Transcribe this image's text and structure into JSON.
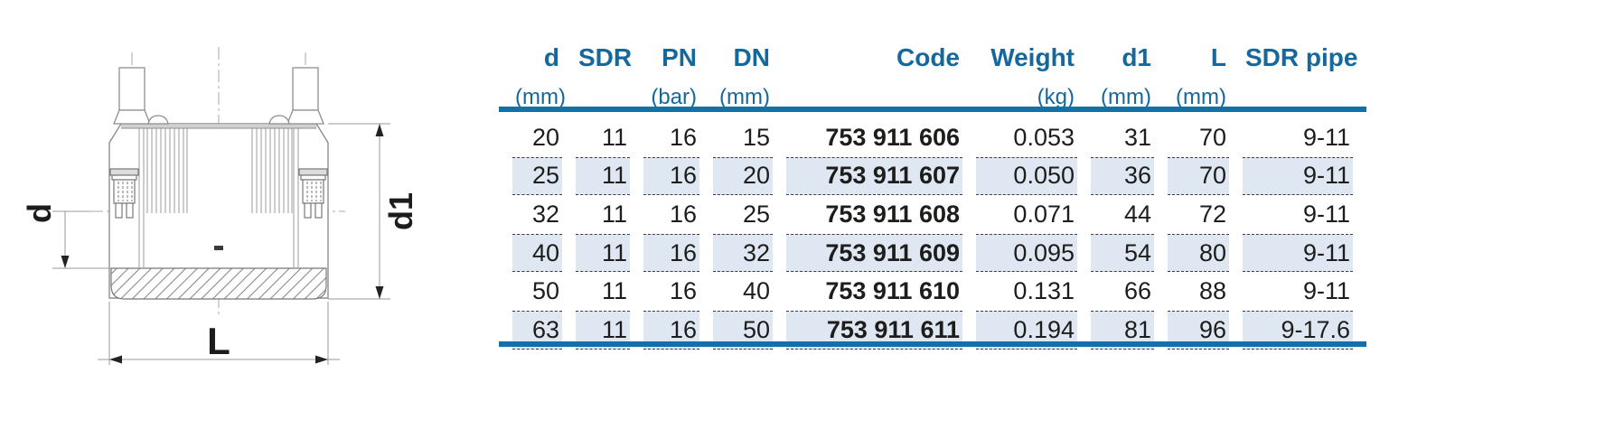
{
  "drawing": {
    "dim_d_label": "d",
    "dim_d1_label": "d1",
    "dim_L_label": "L"
  },
  "table": {
    "columns": [
      {
        "label": "d",
        "unit": "(mm)"
      },
      {
        "label": "SDR",
        "unit": ""
      },
      {
        "label": "PN",
        "unit": "(bar)"
      },
      {
        "label": "DN",
        "unit": "(mm)"
      },
      {
        "label": "Code",
        "unit": ""
      },
      {
        "label": "Weight",
        "unit": "(kg)"
      },
      {
        "label": "d1",
        "unit": "(mm)"
      },
      {
        "label": "L",
        "unit": "(mm)"
      },
      {
        "label": "SDR pipe",
        "unit": ""
      }
    ],
    "rows": [
      [
        "20",
        "11",
        "16",
        "15",
        "753 911 606",
        "0.053",
        "31",
        "70",
        "9-11"
      ],
      [
        "25",
        "11",
        "16",
        "20",
        "753 911 607",
        "0.050",
        "36",
        "70",
        "9-11"
      ],
      [
        "32",
        "11",
        "16",
        "25",
        "753 911 608",
        "0.071",
        "44",
        "72",
        "9-11"
      ],
      [
        "40",
        "11",
        "16",
        "32",
        "753 911 609",
        "0.095",
        "54",
        "80",
        "9-11"
      ],
      [
        "50",
        "11",
        "16",
        "40",
        "753 911 610",
        "0.131",
        "66",
        "88",
        "9-11"
      ],
      [
        "63",
        "11",
        "16",
        "50",
        "753 911 611",
        "0.194",
        "81",
        "96",
        "9-17.6"
      ]
    ]
  },
  "colors": {
    "header_text": "#15679c",
    "rule": "#1272a8",
    "row_shade": "#dfe8f2",
    "data_text": "#1d1d1b"
  }
}
